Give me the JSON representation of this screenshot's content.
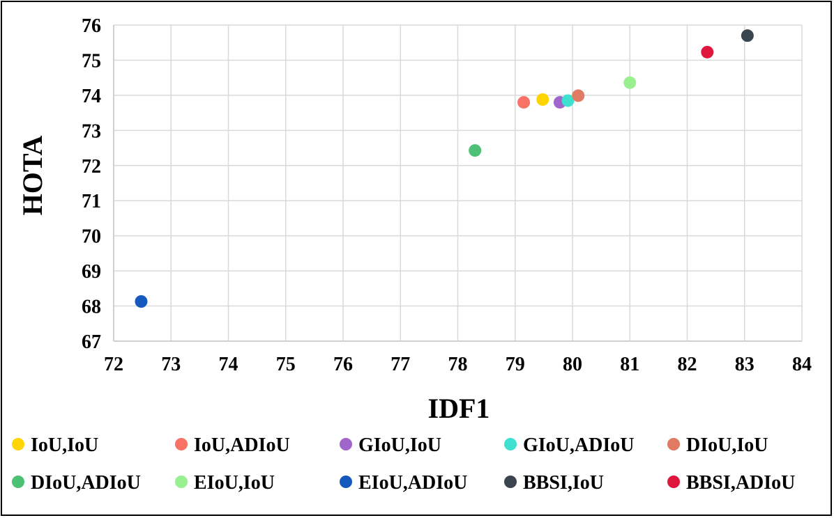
{
  "chart_data": {
    "type": "scatter",
    "title": "",
    "xlabel": "IDF1",
    "ylabel": "HOTA",
    "xlim": [
      72,
      84
    ],
    "ylim": [
      67,
      76
    ],
    "xticks": [
      "72",
      "73",
      "74",
      "75",
      "76",
      "77",
      "78",
      "79",
      "80",
      "81",
      "82",
      "83",
      "84"
    ],
    "yticks": [
      "67",
      "68",
      "69",
      "70",
      "71",
      "72",
      "73",
      "74",
      "75",
      "76"
    ],
    "grid": true,
    "legend_position": "bottom",
    "series": [
      {
        "name": "IoU,IoU",
        "color": "#FFD400",
        "x": 79.48,
        "y": 73.88
      },
      {
        "name": "IoU,ADIoU",
        "color": "#F87266",
        "x": 79.15,
        "y": 73.8
      },
      {
        "name": "GIoU,IoU",
        "color": "#A066CC",
        "x": 79.78,
        "y": 73.8
      },
      {
        "name": "GIoU,ADIoU",
        "color": "#3EE0D0",
        "x": 79.92,
        "y": 73.85
      },
      {
        "name": "DIoU,IoU",
        "color": "#E07A63",
        "x": 80.1,
        "y": 73.99
      },
      {
        "name": "DIoU,ADIoU",
        "color": "#4CC074",
        "x": 78.3,
        "y": 72.43
      },
      {
        "name": "EIoU,IoU",
        "color": "#99F090",
        "x": 81.0,
        "y": 74.36
      },
      {
        "name": "EIoU,ADIoU",
        "color": "#1659BE",
        "x": 72.48,
        "y": 68.13
      },
      {
        "name": "BBSI,IoU",
        "color": "#3A4550",
        "x": 83.05,
        "y": 75.7
      },
      {
        "name": "BBSI,ADIoU",
        "color": "#E0173C",
        "x": 82.35,
        "y": 75.23
      }
    ]
  }
}
